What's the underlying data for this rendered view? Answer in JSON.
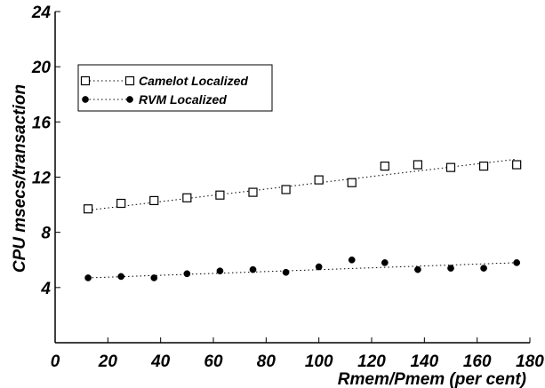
{
  "chart_data": {
    "type": "scatter",
    "title": "",
    "xlabel": "Rmem/Pmem (per cent)",
    "ylabel": "CPU msecs/transaction",
    "xlim": [
      0,
      180
    ],
    "ylim": [
      0,
      24
    ],
    "x_ticks": [
      0,
      20,
      40,
      60,
      80,
      100,
      120,
      140,
      160,
      180
    ],
    "y_ticks": [
      4,
      8,
      12,
      16,
      20,
      24
    ],
    "x_tick_labels": [
      "0",
      "20",
      "40",
      "60",
      "80",
      "100",
      "120",
      "140",
      "160",
      "180"
    ],
    "y_tick_labels": [
      "4",
      "8",
      "12",
      "16",
      "20",
      "24"
    ],
    "grid": false,
    "legend_position": "top-left",
    "series": [
      {
        "name": "Camelot Localized",
        "marker": "open-square",
        "color": "#000000",
        "x": [
          12.5,
          25,
          37.5,
          50,
          62.5,
          75,
          87.5,
          100,
          112.5,
          125,
          137.5,
          150,
          162.5,
          175
        ],
        "values": [
          9.7,
          10.1,
          10.3,
          10.5,
          10.7,
          10.9,
          11.1,
          11.8,
          11.6,
          12.8,
          12.9,
          12.7,
          12.8,
          12.9
        ],
        "trend": [
          9.6,
          13.3
        ]
      },
      {
        "name": "RVM Localized",
        "marker": "filled-circle",
        "color": "#000000",
        "x": [
          12.5,
          25,
          37.5,
          50,
          62.5,
          75,
          87.5,
          100,
          112.5,
          125,
          137.5,
          150,
          162.5,
          175
        ],
        "values": [
          4.7,
          4.8,
          4.7,
          5.0,
          5.2,
          5.3,
          5.1,
          5.5,
          6.0,
          5.8,
          5.3,
          5.4,
          5.4,
          5.8
        ],
        "trend": [
          4.7,
          5.8
        ]
      }
    ]
  }
}
